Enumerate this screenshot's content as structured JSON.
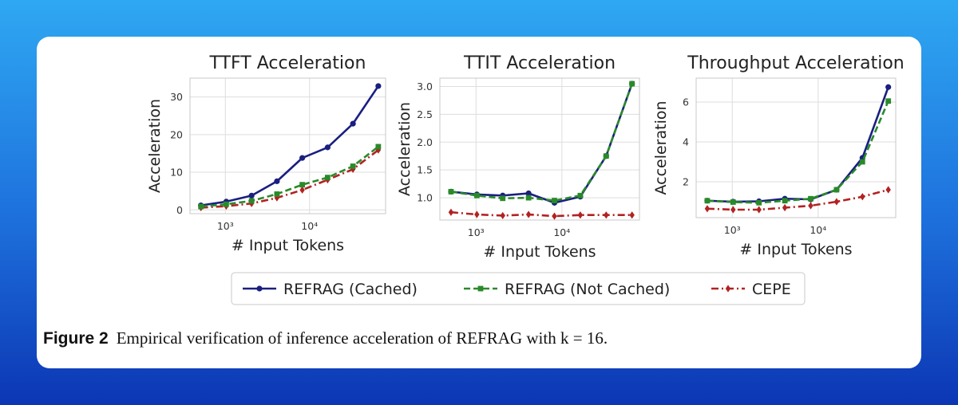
{
  "caption": {
    "label": "Figure 2",
    "text": "Empirical verification of inference acceleration of REFRAG with k = 16."
  },
  "legend": [
    {
      "name": "REFRAG (Cached)",
      "color": "#1a1f80",
      "style": "solid",
      "marker": "circle"
    },
    {
      "name": "REFRAG (Not Cached)",
      "color": "#2a8a2a",
      "style": "dashed",
      "marker": "square"
    },
    {
      "name": "CEPE",
      "color": "#b22222",
      "style": "dashdot",
      "marker": "diamond"
    }
  ],
  "chart_data": [
    {
      "type": "line",
      "title": "TTFT Acceleration",
      "xlabel": "# Input Tokens",
      "ylabel": "Acceleration",
      "xscale": "log",
      "xlim": [
        380,
        80000
      ],
      "ylim": [
        -1,
        35
      ],
      "yticks": [
        0,
        10,
        20,
        30
      ],
      "ytick_labels": [
        "0",
        "10",
        "20",
        "30"
      ],
      "xticks": [
        1000,
        10000
      ],
      "xtick_labels": [
        "10³",
        "10⁴"
      ],
      "grid": true,
      "x": [
        512,
        1024,
        2048,
        4096,
        8192,
        16384,
        32768,
        65536
      ],
      "series": [
        {
          "name": "REFRAG (Cached)",
          "values": [
            1.2,
            2.2,
            3.8,
            7.6,
            13.8,
            16.6,
            22.9,
            32.9
          ]
        },
        {
          "name": "REFRAG (Not Cached)",
          "values": [
            0.9,
            1.5,
            2.4,
            4.2,
            6.7,
            8.6,
            11.6,
            16.8
          ]
        },
        {
          "name": "CEPE",
          "values": [
            0.6,
            1.0,
            1.7,
            3.2,
            5.3,
            8.0,
            10.8,
            15.9
          ]
        }
      ]
    },
    {
      "type": "line",
      "title": "TTIT Acceleration",
      "xlabel": "# Input Tokens",
      "ylabel": "Acceleration",
      "xscale": "log",
      "xlim": [
        380,
        80000
      ],
      "ylim": [
        0.6,
        3.15
      ],
      "yticks": [
        1.0,
        1.5,
        2.0,
        2.5,
        3.0
      ],
      "ytick_labels": [
        "1.0",
        "1.5",
        "2.0",
        "2.5",
        "3.0"
      ],
      "xticks": [
        1000,
        10000
      ],
      "xtick_labels": [
        "10³",
        "10⁴"
      ],
      "grid": true,
      "x": [
        512,
        1024,
        2048,
        4096,
        8192,
        16384,
        32768,
        65536
      ],
      "series": [
        {
          "name": "REFRAG (Cached)",
          "values": [
            1.11,
            1.06,
            1.04,
            1.08,
            0.91,
            1.02,
            1.75,
            3.05
          ]
        },
        {
          "name": "REFRAG (Not Cached)",
          "values": [
            1.11,
            1.04,
            0.99,
            1.0,
            0.95,
            1.04,
            1.75,
            3.05
          ]
        },
        {
          "name": "CEPE",
          "values": [
            0.74,
            0.7,
            0.68,
            0.7,
            0.67,
            0.69,
            0.69,
            0.69
          ]
        }
      ]
    },
    {
      "type": "line",
      "title": "Throughput Acceleration",
      "xlabel": "# Input Tokens",
      "ylabel": "Acceleration",
      "xscale": "log",
      "xlim": [
        380,
        80000
      ],
      "ylim": [
        0.2,
        7.2
      ],
      "yticks": [
        2,
        4,
        6
      ],
      "ytick_labels": [
        "2",
        "4",
        "6"
      ],
      "xticks": [
        1000,
        10000
      ],
      "xtick_labels": [
        "10³",
        "10⁴"
      ],
      "grid": true,
      "x": [
        512,
        1024,
        2048,
        4096,
        8192,
        16384,
        32768,
        65536
      ],
      "series": [
        {
          "name": "REFRAG (Cached)",
          "values": [
            1.05,
            1.0,
            1.02,
            1.15,
            1.12,
            1.6,
            3.2,
            6.75
          ]
        },
        {
          "name": "REFRAG (Not Cached)",
          "values": [
            1.05,
            0.98,
            0.95,
            1.05,
            1.15,
            1.6,
            3.0,
            6.05
          ]
        },
        {
          "name": "CEPE",
          "values": [
            0.65,
            0.6,
            0.6,
            0.7,
            0.8,
            1.0,
            1.25,
            1.6
          ]
        }
      ]
    }
  ]
}
